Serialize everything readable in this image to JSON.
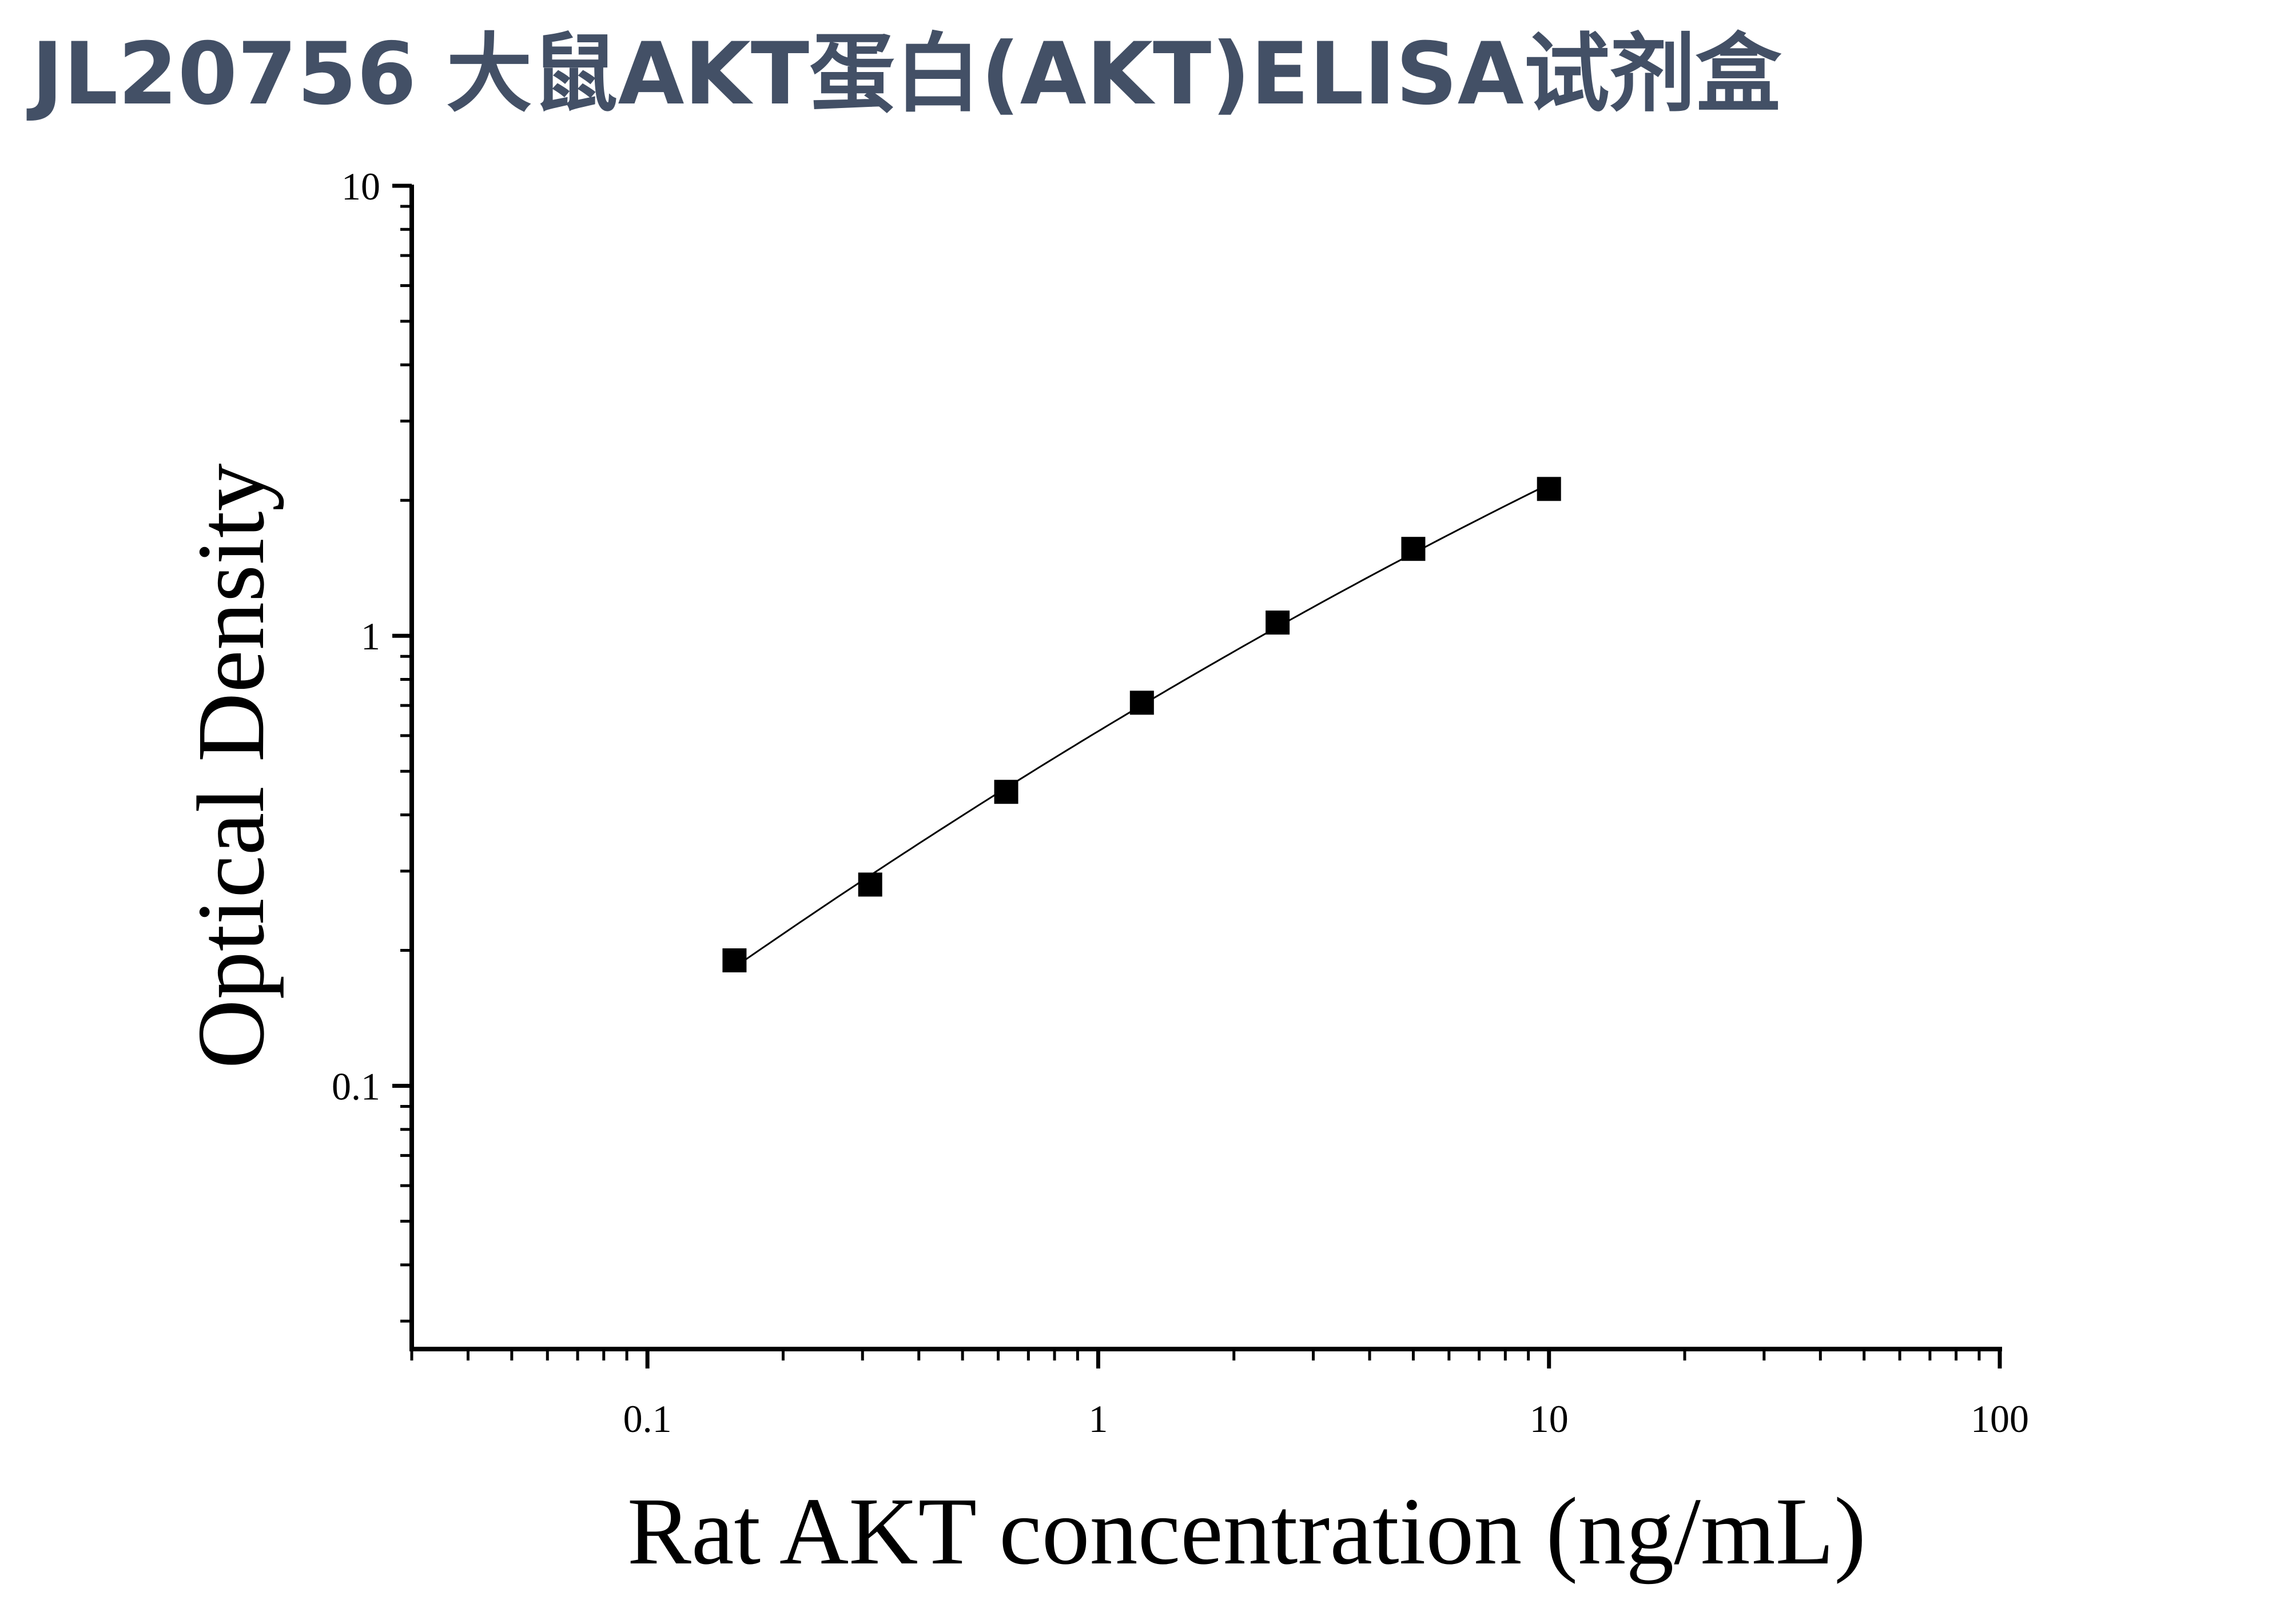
{
  "chart_data": {
    "type": "scatter",
    "title": "JL20756 大鼠AKT蛋白(AKT)ELISA试剂盒",
    "xlabel": "Rat AKT concentration (ng/mL)",
    "ylabel": "Optical Density",
    "xscale": "log",
    "yscale": "log",
    "xlim": [
      0.03,
      100
    ],
    "ylim": [
      0.026,
      10
    ],
    "x_ticks": [
      "0.1",
      "1",
      "10",
      "100"
    ],
    "y_ticks": [
      "0.1",
      "1",
      "10"
    ],
    "grid": false,
    "fit_curve": true,
    "marker": "square",
    "colors": {
      "marker": "#000000",
      "title": "#435066"
    },
    "series": [
      {
        "x": [
          0.156,
          0.312,
          0.625,
          1.25,
          2.5,
          5,
          10
        ],
        "y": [
          0.19,
          0.28,
          0.45,
          0.71,
          1.07,
          1.56,
          2.12
        ]
      }
    ]
  }
}
